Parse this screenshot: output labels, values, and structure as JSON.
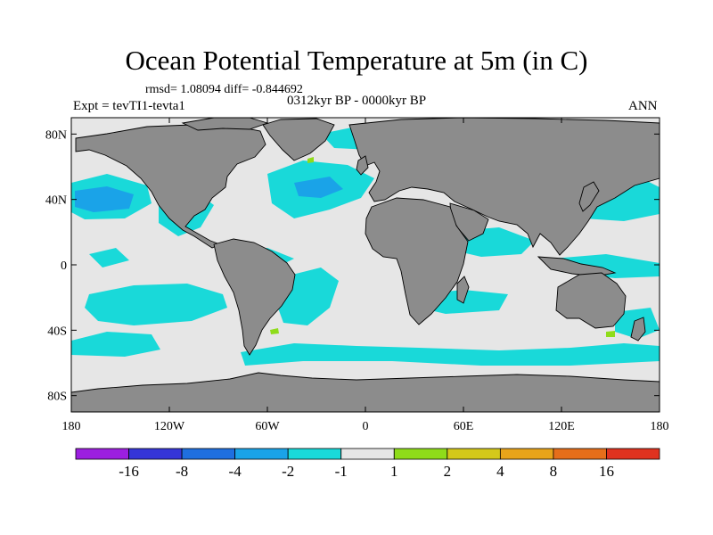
{
  "chart_data": {
    "type": "heatmap",
    "title": "Ocean Potential Temperature at 5m (in C)",
    "stats_text": "rmsd= 1.08094  diff= -0.844692",
    "period": "0312kyr BP - 0000kyr BP",
    "left_label": "Expt = tevTI1-tevta1",
    "right_label": "ANN",
    "xlim": [
      -180,
      180
    ],
    "ylim": [
      -90,
      90
    ],
    "x_ticks": [
      {
        "value": -180,
        "label": "180"
      },
      {
        "value": -120,
        "label": "120W"
      },
      {
        "value": -60,
        "label": "60W"
      },
      {
        "value": 0,
        "label": "0"
      },
      {
        "value": 60,
        "label": "60E"
      },
      {
        "value": 120,
        "label": "120E"
      },
      {
        "value": 180,
        "label": "180"
      }
    ],
    "y_ticks": [
      {
        "value": 80,
        "label": "80N"
      },
      {
        "value": 40,
        "label": "40N"
      },
      {
        "value": 0,
        "label": "0"
      },
      {
        "value": -40,
        "label": "40S"
      },
      {
        "value": -80,
        "label": "80S"
      }
    ],
    "colorbar": {
      "levels": [
        "-16",
        "-8",
        "-4",
        "-2",
        "-1",
        "1",
        "2",
        "4",
        "8",
        "16"
      ],
      "colors": [
        "#9c1fe0",
        "#3535d8",
        "#1f6fe0",
        "#1aa3e8",
        "#19d9d9",
        "#e6e6e6",
        "#8fdc1a",
        "#d4c81a",
        "#e8a41a",
        "#e66e1a",
        "#e0321f"
      ]
    },
    "regions": [
      {
        "name": "north-pacific-cool",
        "level": "-2 to -1",
        "lon": [
          -180,
          -140
        ],
        "lat": [
          30,
          48
        ]
      },
      {
        "name": "tropical-pacific-cool",
        "level": "-2 to -1",
        "lon": [
          -140,
          -100
        ],
        "lat": [
          5,
          25
        ]
      },
      {
        "name": "south-pacific-cool",
        "level": "-2 to -1",
        "lon": [
          -140,
          -80
        ],
        "lat": [
          -45,
          -20
        ]
      },
      {
        "name": "south-atlantic-cool",
        "level": "-2 to -1",
        "lon": [
          -60,
          -20
        ],
        "lat": [
          -50,
          -15
        ]
      },
      {
        "name": "north-atlantic-cool",
        "level": "-2 to -1",
        "lon": [
          -70,
          -20
        ],
        "lat": [
          30,
          55
        ]
      },
      {
        "name": "kuroshio-cool",
        "level": "-4 to -2",
        "lon": [
          130,
          150
        ],
        "lat": [
          30,
          45
        ]
      },
      {
        "name": "indian-ocean-cool",
        "level": "-2 to -1",
        "lon": [
          50,
          110
        ],
        "lat": [
          -15,
          -5
        ]
      },
      {
        "name": "southern-ocean-cool",
        "level": "-2 to -1",
        "lon": [
          30,
          180
        ],
        "lat": [
          -65,
          -50
        ]
      }
    ],
    "land_color": "#8c8c8c",
    "background_color": "#e6e6e6"
  }
}
